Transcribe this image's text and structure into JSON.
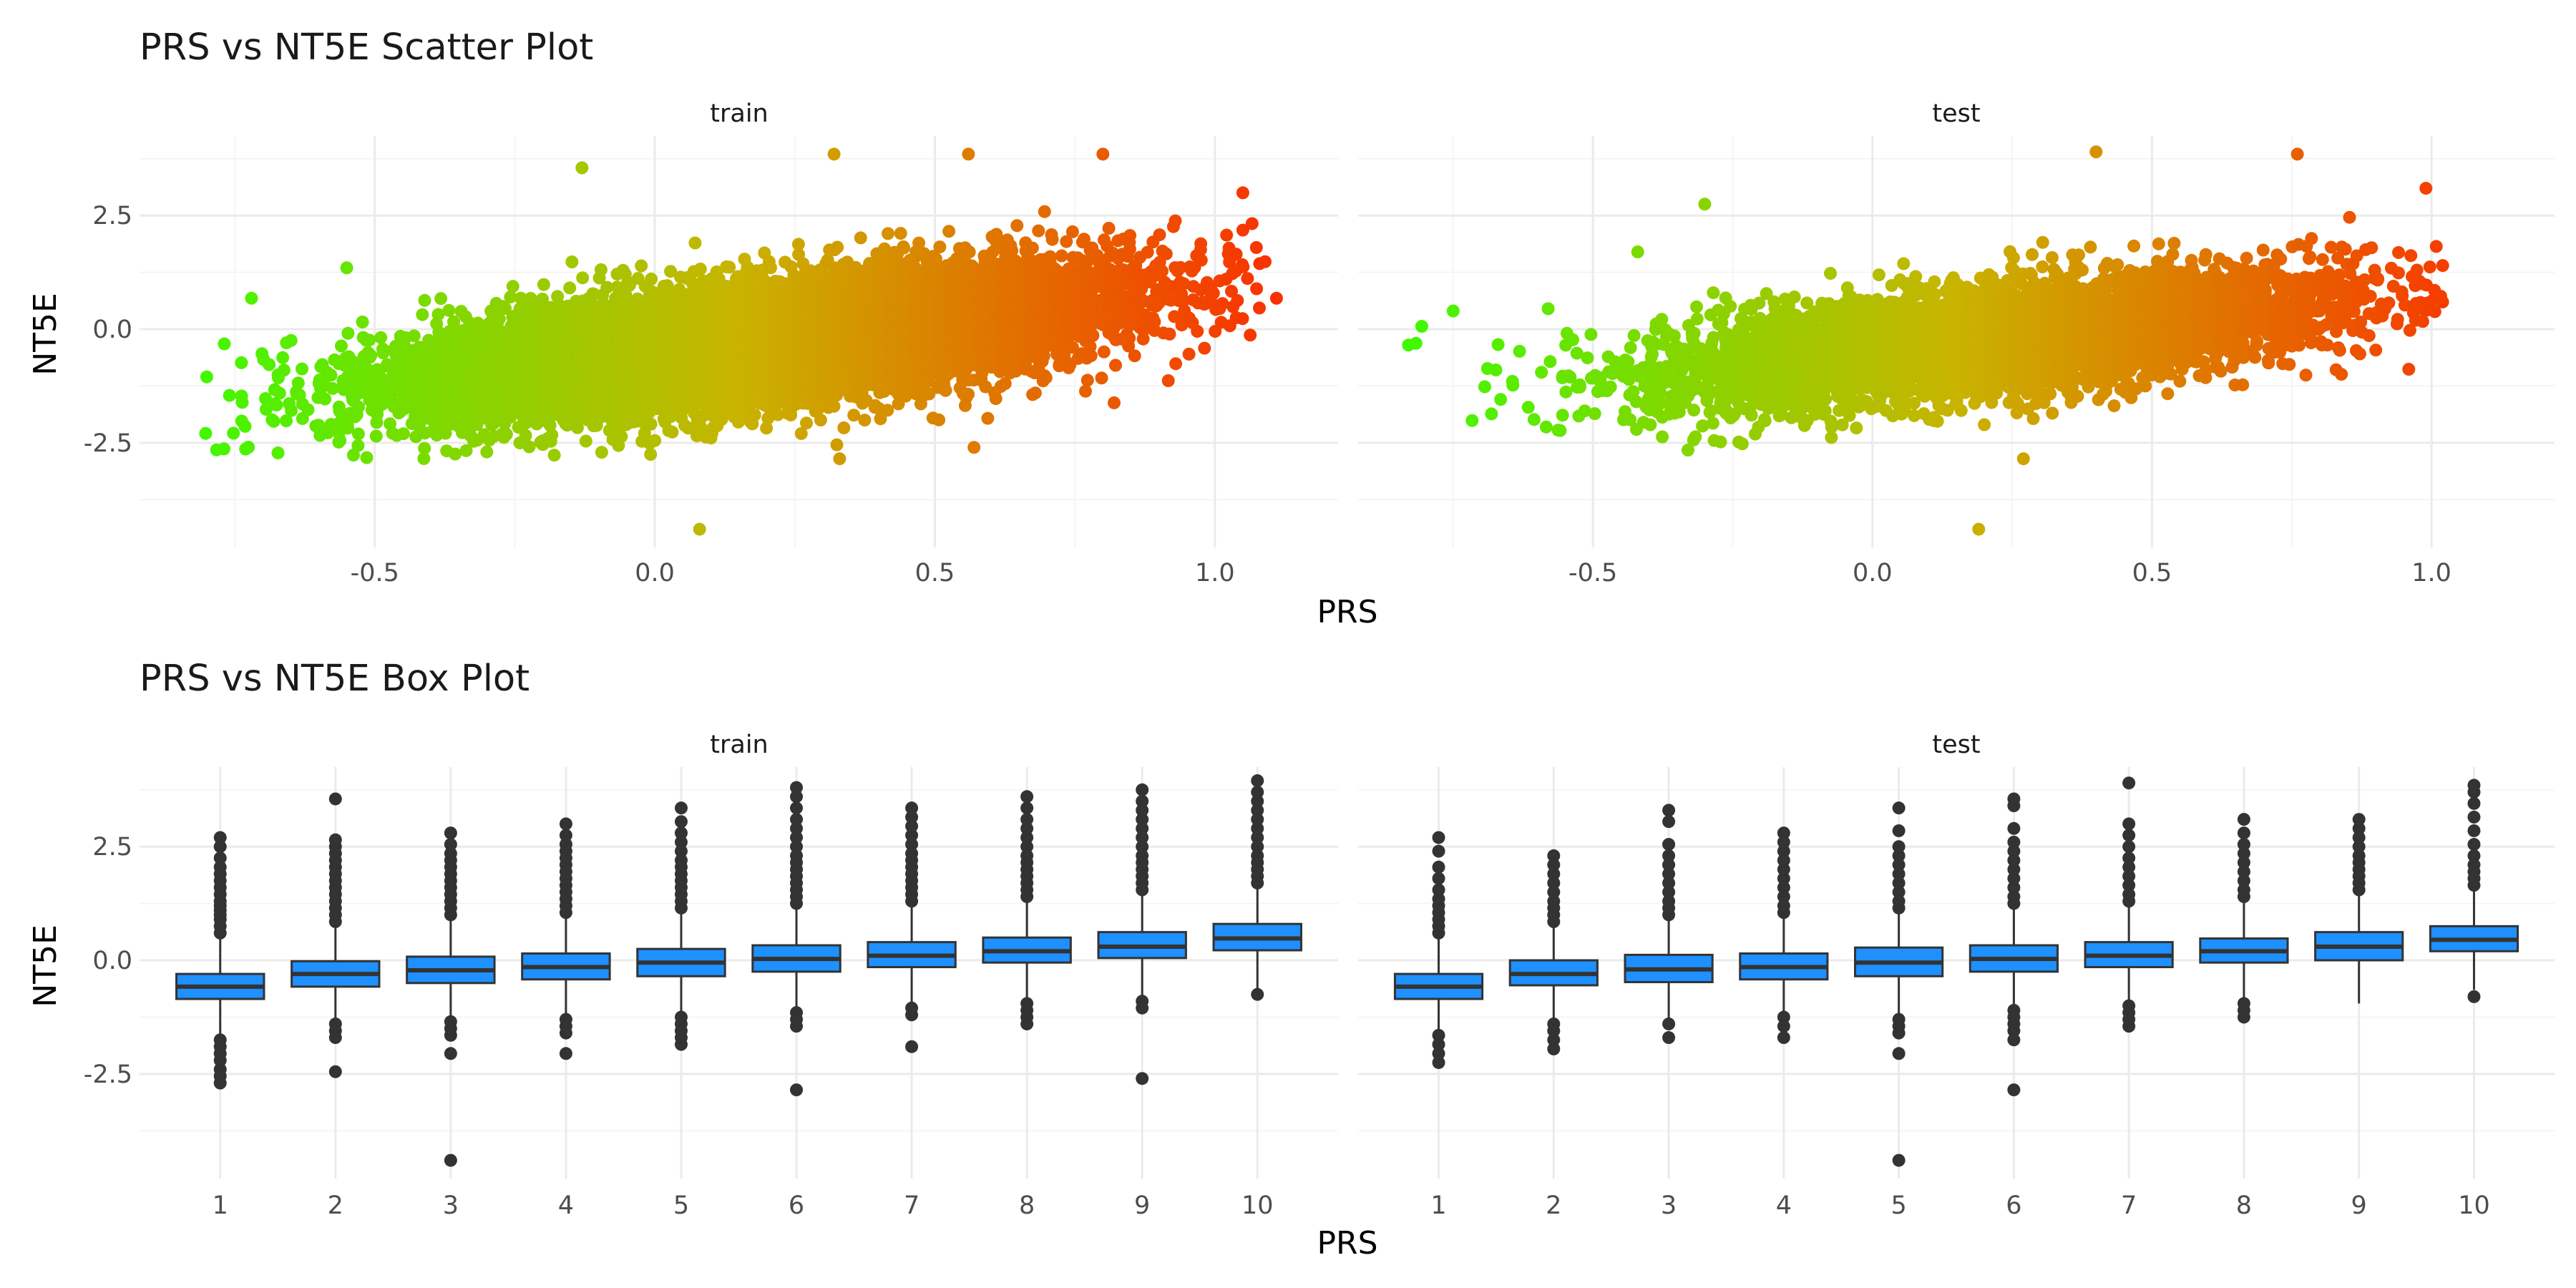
{
  "chart_data": [
    {
      "type": "scatter",
      "title": "PRS vs NT5E Scatter Plot",
      "xlabel": "PRS",
      "ylabel": "NT5E",
      "xlim": [
        -0.92,
        1.22
      ],
      "ylim": [
        -4.8,
        4.25
      ],
      "x_ticks": [
        -0.5,
        0.0,
        0.5,
        1.0
      ],
      "x_tick_labels": [
        "-0.5",
        "0.0",
        "0.5",
        "1.0"
      ],
      "y_ticks": [
        -2.5,
        0.0,
        2.5
      ],
      "y_tick_labels": [
        "-2.5",
        "0.0",
        "2.5"
      ],
      "color_scale": {
        "low": "#33ff00",
        "mid": "#c8b400",
        "high": "#ff2200",
        "maps": "PRS"
      },
      "grid": true,
      "legend": "none",
      "panels": [
        {
          "label": "train",
          "n_points": 12000,
          "x_mean": 0.2,
          "x_sd": 0.3,
          "x_range": [
            -0.82,
            1.1
          ],
          "y_intercept": -0.55,
          "y_slope": 1.45,
          "y_noise_sd": 0.62,
          "outliers": [
            {
              "x": 0.08,
              "y": -4.4
            },
            {
              "x": 0.33,
              "y": -2.85
            },
            {
              "x": 0.57,
              "y": -2.6
            },
            {
              "x": -0.3,
              "y": -2.7
            },
            {
              "x": 0.0,
              "y": -2.45
            },
            {
              "x": -0.13,
              "y": 3.55
            },
            {
              "x": 0.32,
              "y": 3.85
            },
            {
              "x": 1.11,
              "y": 0.68
            },
            {
              "x": 1.05,
              "y": 3.0
            },
            {
              "x": -0.72,
              "y": 0.68
            },
            {
              "x": -0.55,
              "y": 1.35
            },
            {
              "x": -0.8,
              "y": -1.05
            },
            {
              "x": 0.8,
              "y": 3.85
            },
            {
              "x": 0.56,
              "y": 3.85
            }
          ]
        },
        {
          "label": "test",
          "n_points": 5000,
          "x_mean": 0.22,
          "x_sd": 0.3,
          "x_range": [
            -0.83,
            1.02
          ],
          "y_intercept": -0.5,
          "y_slope": 1.3,
          "y_noise_sd": 0.6,
          "outliers": [
            {
              "x": 0.19,
              "y": -4.4
            },
            {
              "x": 0.27,
              "y": -2.85
            },
            {
              "x": -0.83,
              "y": -0.35
            },
            {
              "x": 0.4,
              "y": 3.9
            },
            {
              "x": 0.76,
              "y": 3.85
            },
            {
              "x": 0.99,
              "y": 3.1
            },
            {
              "x": 1.02,
              "y": 1.4
            },
            {
              "x": -0.42,
              "y": 1.7
            },
            {
              "x": -0.58,
              "y": 0.45
            },
            {
              "x": -0.75,
              "y": 0.4
            },
            {
              "x": 0.2,
              "y": -2.1
            },
            {
              "x": -0.3,
              "y": 2.75
            }
          ]
        }
      ]
    },
    {
      "type": "box",
      "title": "PRS vs NT5E Box Plot",
      "xlabel": "PRS",
      "ylabel": "NT5E",
      "categories": [
        "1",
        "2",
        "3",
        "4",
        "5",
        "6",
        "7",
        "8",
        "9",
        "10"
      ],
      "ylim": [
        -4.8,
        4.25
      ],
      "y_ticks": [
        -2.5,
        0.0,
        2.5
      ],
      "y_tick_labels": [
        "-2.5",
        "0.0",
        "2.5"
      ],
      "fill": "#1e90ff",
      "grid": true,
      "legend": "none",
      "panels": [
        {
          "label": "train",
          "boxes": [
            {
              "q1": -0.85,
              "median": -0.58,
              "q3": -0.3,
              "lower": -1.65,
              "upper": 0.55,
              "outliers_high": [
                0.6,
                0.75,
                0.9,
                1.0,
                1.1,
                1.2,
                1.3,
                1.45,
                1.6,
                1.75,
                1.9,
                2.05,
                2.25,
                2.5,
                2.7
              ],
              "outliers_low": [
                -1.75,
                -1.9,
                -2.05,
                -2.2,
                -2.4,
                -2.55,
                -2.7
              ]
            },
            {
              "q1": -0.58,
              "median": -0.3,
              "q3": -0.02,
              "lower": -1.35,
              "upper": 0.8,
              "outliers_high": [
                0.85,
                1.0,
                1.15,
                1.3,
                1.45,
                1.6,
                1.75,
                1.9,
                2.05,
                2.2,
                2.35,
                2.5,
                2.65,
                3.55
              ],
              "outliers_low": [
                -1.4,
                -1.55,
                -1.7,
                -2.45
              ]
            },
            {
              "q1": -0.5,
              "median": -0.22,
              "q3": 0.08,
              "lower": -1.3,
              "upper": 0.95,
              "outliers_high": [
                1.0,
                1.15,
                1.3,
                1.45,
                1.6,
                1.75,
                1.9,
                2.05,
                2.2,
                2.35,
                2.55,
                2.8
              ],
              "outliers_low": [
                -1.35,
                -1.5,
                -1.65,
                -2.05,
                -4.4
              ]
            },
            {
              "q1": -0.42,
              "median": -0.15,
              "q3": 0.15,
              "lower": -1.25,
              "upper": 1.0,
              "outliers_high": [
                1.05,
                1.2,
                1.35,
                1.5,
                1.65,
                1.8,
                1.95,
                2.1,
                2.25,
                2.4,
                2.55,
                2.75,
                3.0
              ],
              "outliers_low": [
                -1.3,
                -1.45,
                -1.6,
                -2.05
              ]
            },
            {
              "q1": -0.35,
              "median": -0.05,
              "q3": 0.25,
              "lower": -1.2,
              "upper": 1.1,
              "outliers_high": [
                1.15,
                1.3,
                1.45,
                1.6,
                1.75,
                1.9,
                2.05,
                2.2,
                2.4,
                2.6,
                2.8,
                3.05,
                3.35
              ],
              "outliers_low": [
                -1.25,
                -1.4,
                -1.55,
                -1.7,
                -1.85
              ]
            },
            {
              "q1": -0.25,
              "median": 0.03,
              "q3": 0.33,
              "lower": -1.1,
              "upper": 1.2,
              "outliers_high": [
                1.25,
                1.4,
                1.55,
                1.7,
                1.85,
                2.0,
                2.15,
                2.3,
                2.5,
                2.7,
                2.9,
                3.1,
                3.35,
                3.6,
                3.8
              ],
              "outliers_low": [
                -1.15,
                -1.3,
                -1.45,
                -2.85
              ]
            },
            {
              "q1": -0.15,
              "median": 0.1,
              "q3": 0.4,
              "lower": -1.0,
              "upper": 1.25,
              "outliers_high": [
                1.3,
                1.45,
                1.6,
                1.75,
                1.9,
                2.05,
                2.2,
                2.35,
                2.55,
                2.75,
                2.95,
                3.15,
                3.35
              ],
              "outliers_low": [
                -1.05,
                -1.2,
                -1.9
              ]
            },
            {
              "q1": -0.05,
              "median": 0.2,
              "q3": 0.5,
              "lower": -0.9,
              "upper": 1.35,
              "outliers_high": [
                1.4,
                1.55,
                1.7,
                1.85,
                2.0,
                2.15,
                2.3,
                2.5,
                2.7,
                2.9,
                3.1,
                3.35,
                3.6
              ],
              "outliers_low": [
                -0.95,
                -1.1,
                -1.25,
                -1.4
              ]
            },
            {
              "q1": 0.05,
              "median": 0.3,
              "q3": 0.62,
              "lower": -0.85,
              "upper": 1.5,
              "outliers_high": [
                1.55,
                1.7,
                1.85,
                2.0,
                2.15,
                2.3,
                2.5,
                2.7,
                2.9,
                3.1,
                3.3,
                3.5,
                3.75
              ],
              "outliers_low": [
                -0.9,
                -1.05,
                -2.6
              ]
            },
            {
              "q1": 0.22,
              "median": 0.48,
              "q3": 0.8,
              "lower": -0.65,
              "upper": 1.65,
              "outliers_high": [
                1.7,
                1.85,
                2.0,
                2.15,
                2.3,
                2.5,
                2.7,
                2.9,
                3.1,
                3.3,
                3.5,
                3.7,
                3.95
              ],
              "outliers_low": [
                -0.75
              ]
            }
          ]
        },
        {
          "label": "test",
          "boxes": [
            {
              "q1": -0.85,
              "median": -0.58,
              "q3": -0.3,
              "lower": -1.55,
              "upper": 0.5,
              "outliers_high": [
                0.6,
                0.75,
                0.9,
                1.05,
                1.2,
                1.35,
                1.55,
                1.8,
                2.05,
                2.4,
                2.7
              ],
              "outliers_low": [
                -1.65,
                -1.85,
                -2.05,
                -2.25
              ]
            },
            {
              "q1": -0.55,
              "median": -0.3,
              "q3": 0.0,
              "lower": -1.35,
              "upper": 0.8,
              "outliers_high": [
                0.85,
                1.0,
                1.15,
                1.3,
                1.5,
                1.7,
                1.9,
                2.1,
                2.3
              ],
              "outliers_low": [
                -1.4,
                -1.55,
                -1.75,
                -1.95
              ]
            },
            {
              "q1": -0.48,
              "median": -0.2,
              "q3": 0.12,
              "lower": -1.3,
              "upper": 0.95,
              "outliers_high": [
                1.0,
                1.15,
                1.3,
                1.5,
                1.7,
                1.9,
                2.1,
                2.3,
                2.55,
                3.05,
                3.3
              ],
              "outliers_low": [
                -1.4,
                -1.7
              ]
            },
            {
              "q1": -0.42,
              "median": -0.15,
              "q3": 0.15,
              "lower": -1.2,
              "upper": 1.0,
              "outliers_high": [
                1.05,
                1.2,
                1.4,
                1.6,
                1.8,
                2.0,
                2.2,
                2.4,
                2.6,
                2.8
              ],
              "outliers_low": [
                -1.25,
                -1.45,
                -1.7
              ]
            },
            {
              "q1": -0.35,
              "median": -0.05,
              "q3": 0.28,
              "lower": -1.2,
              "upper": 1.1,
              "outliers_high": [
                1.15,
                1.3,
                1.5,
                1.7,
                1.9,
                2.1,
                2.3,
                2.5,
                2.85,
                3.35
              ],
              "outliers_low": [
                -1.3,
                -1.45,
                -1.6,
                -2.05,
                -4.4
              ]
            },
            {
              "q1": -0.25,
              "median": 0.03,
              "q3": 0.33,
              "lower": -1.0,
              "upper": 1.2,
              "outliers_high": [
                1.25,
                1.4,
                1.6,
                1.8,
                2.0,
                2.2,
                2.4,
                2.6,
                2.9,
                3.4,
                3.55
              ],
              "outliers_low": [
                -1.1,
                -1.25,
                -1.4,
                -1.55,
                -1.75,
                -2.85
              ]
            },
            {
              "q1": -0.15,
              "median": 0.1,
              "q3": 0.4,
              "lower": -0.95,
              "upper": 1.25,
              "outliers_high": [
                1.3,
                1.45,
                1.65,
                1.85,
                2.05,
                2.25,
                2.5,
                2.75,
                3.0,
                3.9
              ],
              "outliers_low": [
                -1.0,
                -1.15,
                -1.3,
                -1.45
              ]
            },
            {
              "q1": -0.05,
              "median": 0.2,
              "q3": 0.48,
              "lower": -0.85,
              "upper": 1.35,
              "outliers_high": [
                1.4,
                1.55,
                1.75,
                1.95,
                2.15,
                2.35,
                2.55,
                2.8,
                3.1
              ],
              "outliers_low": [
                -0.95,
                -1.1,
                -1.25
              ]
            },
            {
              "q1": 0.0,
              "median": 0.3,
              "q3": 0.62,
              "lower": -0.95,
              "upper": 1.5,
              "outliers_high": [
                1.55,
                1.7,
                1.85,
                2.0,
                2.15,
                2.3,
                2.5,
                2.7,
                2.9,
                3.1
              ],
              "outliers_low": []
            },
            {
              "q1": 0.2,
              "median": 0.45,
              "q3": 0.75,
              "lower": -0.65,
              "upper": 1.6,
              "outliers_high": [
                1.65,
                1.8,
                1.95,
                2.1,
                2.3,
                2.55,
                2.85,
                3.15,
                3.45,
                3.7,
                3.85
              ],
              "outliers_low": [
                -0.8
              ]
            }
          ]
        }
      ]
    }
  ]
}
